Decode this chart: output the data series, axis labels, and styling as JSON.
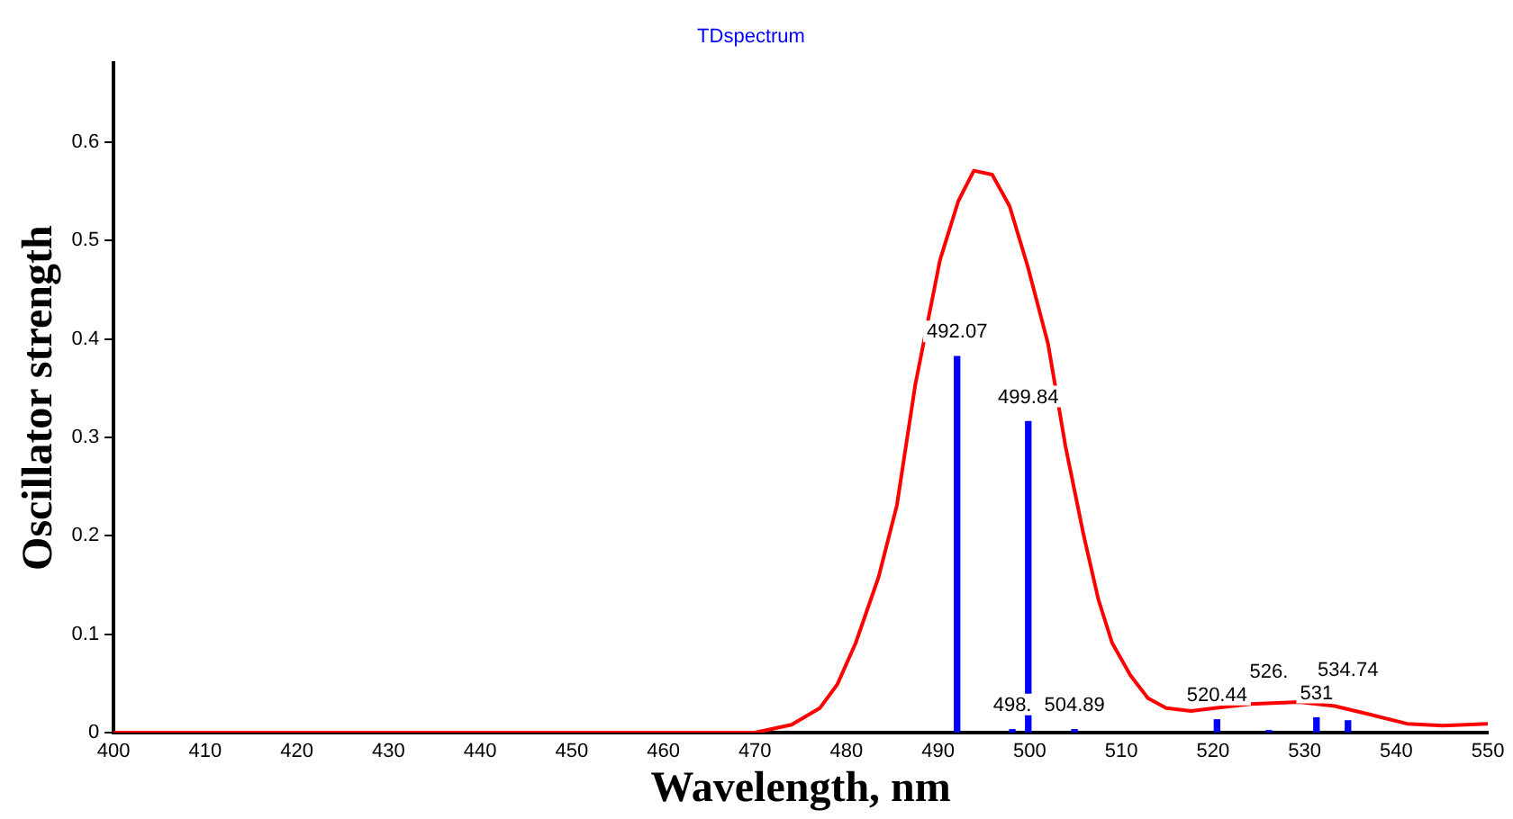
{
  "chart_data": {
    "type": "line",
    "title": "TDspectrum",
    "xlabel": "Wavelength, nm",
    "ylabel": "Oscillator strength",
    "xlim": [
      400,
      550
    ],
    "xticks": [
      400,
      410,
      420,
      430,
      440,
      450,
      460,
      470,
      480,
      490,
      500,
      510,
      520,
      530,
      540,
      550
    ],
    "ylim": [
      0,
      0.68
    ],
    "yticks": [
      0,
      0.1,
      0.2,
      0.3,
      0.4,
      0.5,
      0.6
    ],
    "grid": false,
    "legend": false,
    "marker": "none",
    "series": [
      {
        "color": "#ff0000",
        "x": [
          400,
          470,
          474,
          477.1,
          479.0,
          481.0,
          483.5,
          485.5,
          487.5,
          490.2,
          492.2,
          493.9,
          495.9,
          497.8,
          499.8,
          502.0,
          503.9,
          505.9,
          507.5,
          509.0,
          511.0,
          512.9,
          514.9,
          517.6,
          520.2,
          524.1,
          529.4,
          533.3,
          537.3,
          541.2,
          545.1,
          550
        ],
        "values": [
          0,
          0,
          0.008,
          0.025,
          0.049,
          0.091,
          0.158,
          0.231,
          0.353,
          0.48,
          0.54,
          0.571,
          0.567,
          0.535,
          0.473,
          0.395,
          0.291,
          0.2,
          0.135,
          0.091,
          0.058,
          0.035,
          0.025,
          0.022,
          0.025,
          0.029,
          0.031,
          0.027,
          0.018,
          0.009,
          0.007,
          0.009
        ]
      },
      {
        "type": "bar",
        "color": "#0000ff",
        "x": [
          492.07,
          498.1,
          499.84,
          504.89,
          520.44,
          526.1,
          531.3,
          534.74
        ],
        "values": [
          0.382,
          0.003,
          0.316,
          0.003,
          0.013,
          0.002,
          0.015,
          0.012
        ]
      }
    ],
    "annotations": [
      {
        "text": "492.07",
        "x": 492.07,
        "y": 0.382
      },
      {
        "text": "498.",
        "x": 498.1,
        "y": 0.003
      },
      {
        "text": "499.84",
        "x": 499.84,
        "y": 0.316
      },
      {
        "text": "504.89",
        "x": 504.89,
        "y": 0.003
      },
      {
        "text": "520.44",
        "x": 520.44,
        "y": 0.013
      },
      {
        "text": "526.",
        "x": 526.1,
        "y": 0.002
      },
      {
        "text": "531",
        "x": 531.3,
        "y": 0.015
      },
      {
        "text": "534.74",
        "x": 534.74,
        "y": 0.012
      }
    ]
  }
}
